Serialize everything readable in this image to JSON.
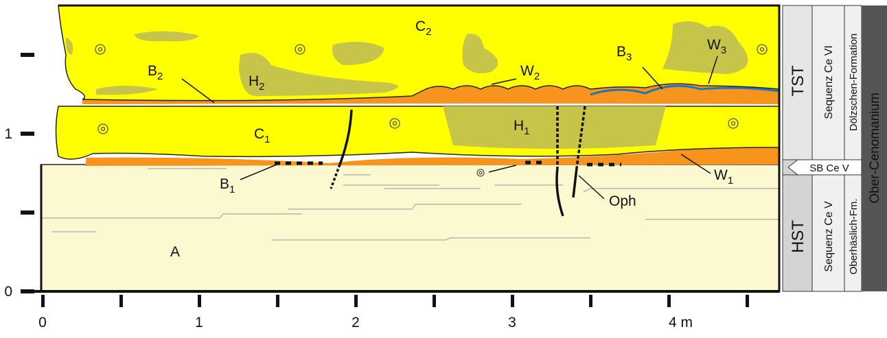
{
  "labels": [
    {
      "text": "C",
      "sub": "2"
    },
    {
      "text": "B",
      "sub": "2"
    },
    {
      "text": "H",
      "sub": "2"
    },
    {
      "text": "W",
      "sub": "2"
    },
    {
      "text": "B",
      "sub": "3"
    },
    {
      "text": "W",
      "sub": "3"
    },
    {
      "text": "C",
      "sub": "1"
    },
    {
      "text": "H",
      "sub": "1"
    },
    {
      "text": "B",
      "sub": "1"
    },
    {
      "text": "W",
      "sub": "1"
    },
    {
      "text": "Oph"
    },
    {
      "text": "A"
    }
  ],
  "axis": {
    "y_ticks": [
      "1",
      "0"
    ],
    "x_ticks": [
      "0",
      "1",
      "2",
      "3",
      "4 m"
    ]
  },
  "column": {
    "systems_tracts": [
      "TST",
      "HST"
    ],
    "sequences": [
      "Sequenz Ce VI",
      "Sequenz Ce V"
    ],
    "formations": [
      "Dölzschen-Formation",
      "Oberhäslich-Fm."
    ],
    "boundary": "SB Ce V",
    "stage": "Ober-Cenomanium"
  }
}
